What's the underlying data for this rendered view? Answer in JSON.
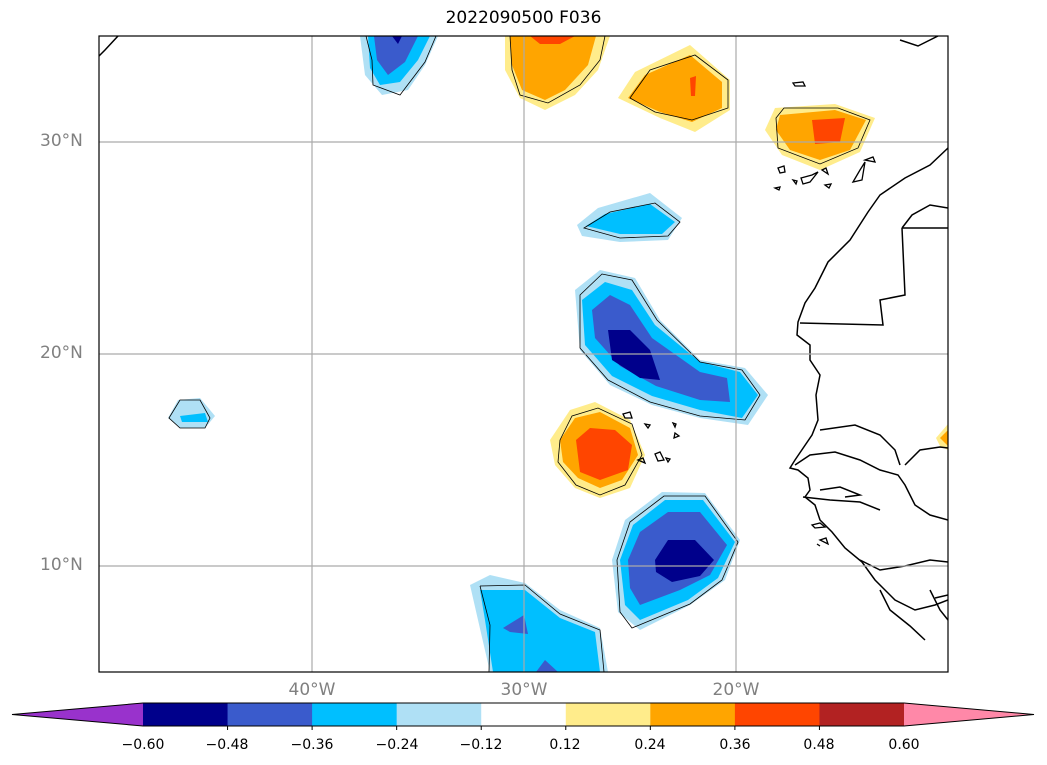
{
  "title": "2022090500 F036",
  "lat_labels": [
    "30°N",
    "20°N",
    "10°N"
  ],
  "lon_labels": [
    "40°W",
    "30°W",
    "20°W"
  ],
  "colorbar": {
    "ticks": [
      "−0.60",
      "−0.48",
      "−0.36",
      "−0.24",
      "−0.12",
      "0.12",
      "0.24",
      "0.36",
      "0.48",
      "0.60"
    ],
    "colors": [
      "#9932cc",
      "#00008b",
      "#3a5bcc",
      "#00bfff",
      "#afe0f5",
      "#ffffff",
      "#ffec8b",
      "#ffa500",
      "#ff4500",
      "#b22222",
      "#ff88a8"
    ]
  },
  "colors": {
    "land_outline": "#000000",
    "grid": "#aaaaaa"
  }
}
